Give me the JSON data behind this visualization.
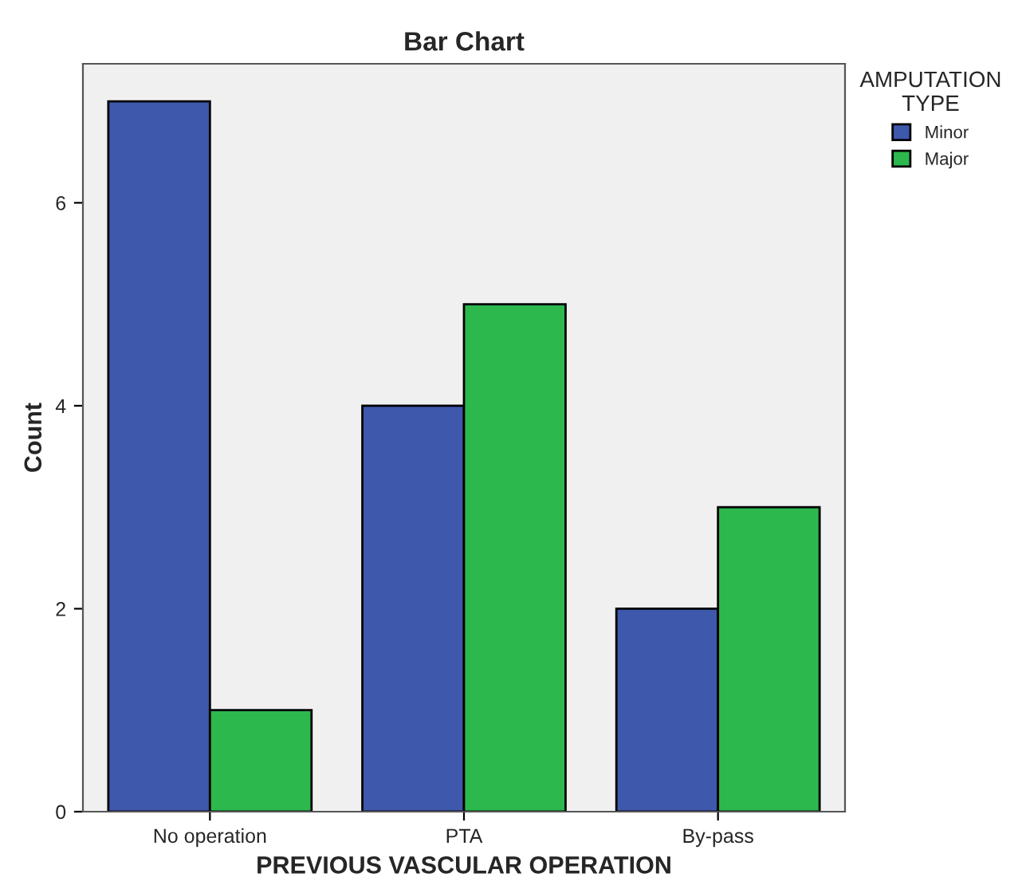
{
  "chart_data": {
    "type": "bar",
    "title": "Bar Chart",
    "xlabel": "PREVIOUS VASCULAR OPERATION",
    "ylabel": "Count",
    "legend_title": "AMPUTATION\nTYPE",
    "categories": [
      "No operation",
      "PTA",
      "By-pass"
    ],
    "series": [
      {
        "name": "Minor",
        "color": "#3e58ac",
        "values": [
          7,
          4,
          2
        ]
      },
      {
        "name": "Major",
        "color": "#2db84d",
        "values": [
          1,
          5,
          3
        ]
      }
    ],
    "ylim": [
      0,
      7.37
    ],
    "yticks": [
      0,
      2,
      4,
      6
    ],
    "grid": false,
    "legend": "right"
  }
}
